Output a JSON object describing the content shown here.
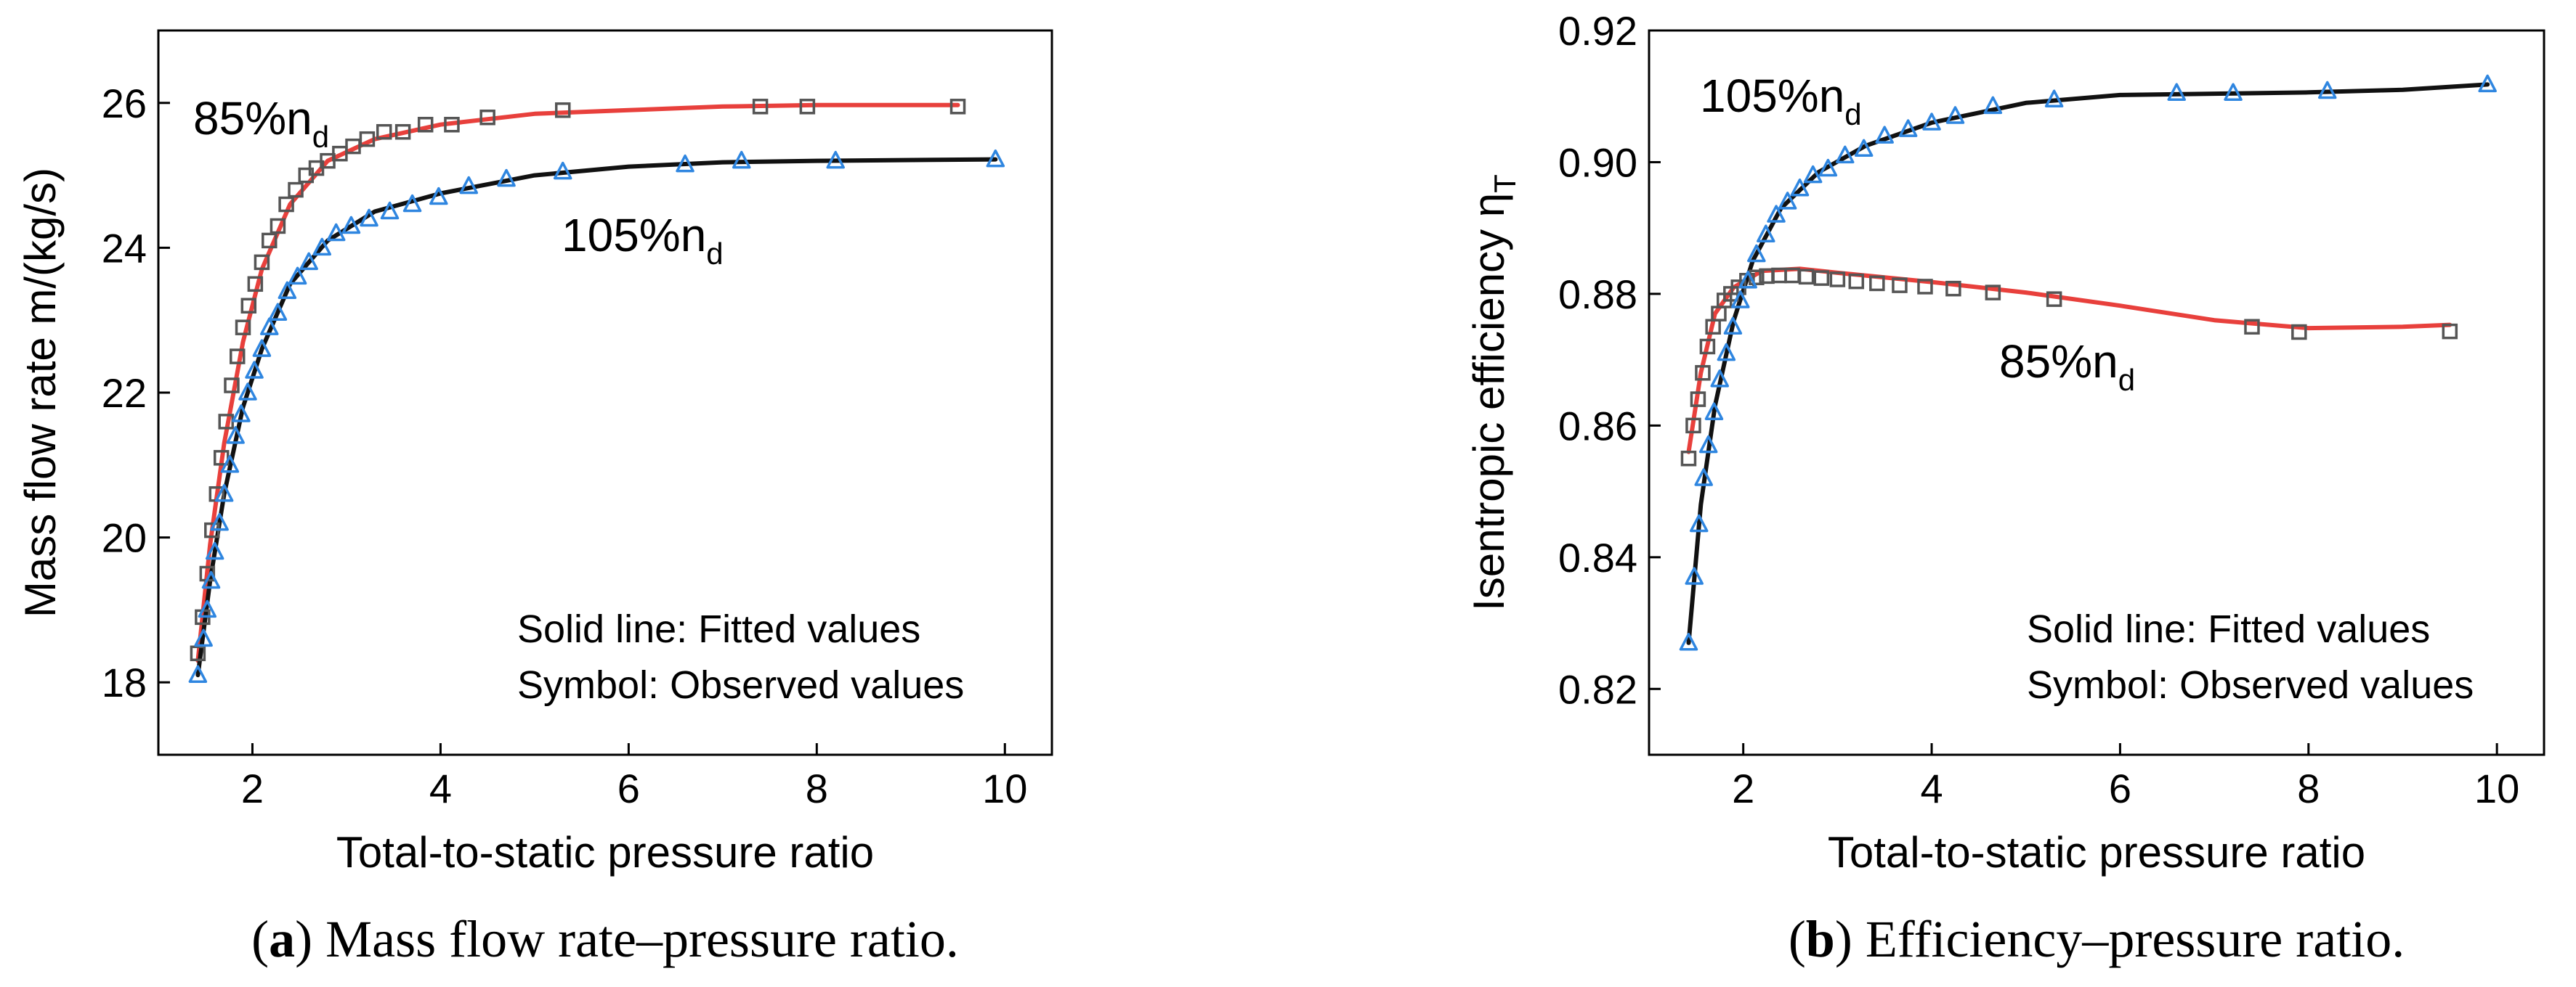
{
  "chart_data": [
    {
      "type": "line",
      "panel": "a",
      "caption_letter": "a",
      "caption_text": "Mass flow rate–pressure ratio.",
      "xlabel": "Total-to-static pressure ratio",
      "ylabel": "Mass flow rate m/(kg/s)",
      "xlim": [
        1.0,
        10.5
      ],
      "ylim": [
        17.0,
        27.0
      ],
      "xticks": [
        2,
        4,
        6,
        8,
        10
      ],
      "yticks": [
        18,
        20,
        22,
        24,
        26
      ],
      "note_fitted": "Solid line: Fitted values",
      "note_symbol": "Symbol: Observed values",
      "series": [
        {
          "name": "85%nd",
          "label_main": "85%n",
          "label_sub": "d",
          "line_color": "#e8403c",
          "marker": "square",
          "marker_color": "#555555",
          "observed": [
            [
              1.42,
              18.4
            ],
            [
              1.47,
              18.9
            ],
            [
              1.52,
              19.5
            ],
            [
              1.57,
              20.1
            ],
            [
              1.62,
              20.6
            ],
            [
              1.67,
              21.1
            ],
            [
              1.72,
              21.6
            ],
            [
              1.78,
              22.1
            ],
            [
              1.84,
              22.5
            ],
            [
              1.9,
              22.9
            ],
            [
              1.96,
              23.2
            ],
            [
              2.03,
              23.5
            ],
            [
              2.1,
              23.8
            ],
            [
              2.18,
              24.1
            ],
            [
              2.27,
              24.3
            ],
            [
              2.36,
              24.6
            ],
            [
              2.46,
              24.8
            ],
            [
              2.57,
              25.0
            ],
            [
              2.68,
              25.1
            ],
            [
              2.8,
              25.2
            ],
            [
              2.93,
              25.3
            ],
            [
              3.07,
              25.4
            ],
            [
              3.22,
              25.5
            ],
            [
              3.4,
              25.6
            ],
            [
              3.6,
              25.6
            ],
            [
              3.84,
              25.7
            ],
            [
              4.12,
              25.7
            ],
            [
              4.5,
              25.8
            ],
            [
              5.3,
              25.9
            ],
            [
              7.4,
              25.95
            ],
            [
              7.9,
              25.95
            ],
            [
              9.5,
              25.95
            ]
          ],
          "fitted": [
            [
              1.42,
              18.3
            ],
            [
              1.55,
              19.9
            ],
            [
              1.7,
              21.3
            ],
            [
              1.9,
              22.7
            ],
            [
              2.1,
              23.7
            ],
            [
              2.4,
              24.6
            ],
            [
              2.8,
              25.2
            ],
            [
              3.3,
              25.5
            ],
            [
              4.0,
              25.7
            ],
            [
              5.0,
              25.85
            ],
            [
              6.0,
              25.9
            ],
            [
              7.0,
              25.95
            ],
            [
              8.0,
              25.97
            ],
            [
              9.5,
              25.97
            ]
          ]
        },
        {
          "name": "105%nd",
          "label_main": "105%n",
          "label_sub": "d",
          "line_color": "#111111",
          "marker": "triangle",
          "marker_color": "#2f86e0",
          "observed": [
            [
              1.42,
              18.1
            ],
            [
              1.48,
              18.6
            ],
            [
              1.52,
              19.0
            ],
            [
              1.56,
              19.4
            ],
            [
              1.6,
              19.8
            ],
            [
              1.65,
              20.2
            ],
            [
              1.7,
              20.6
            ],
            [
              1.76,
              21.0
            ],
            [
              1.82,
              21.4
            ],
            [
              1.88,
              21.7
            ],
            [
              1.95,
              22.0
            ],
            [
              2.02,
              22.3
            ],
            [
              2.1,
              22.6
            ],
            [
              2.18,
              22.9
            ],
            [
              2.27,
              23.1
            ],
            [
              2.37,
              23.4
            ],
            [
              2.48,
              23.6
            ],
            [
              2.6,
              23.8
            ],
            [
              2.74,
              24.0
            ],
            [
              2.89,
              24.2
            ],
            [
              3.05,
              24.3
            ],
            [
              3.24,
              24.4
            ],
            [
              3.46,
              24.5
            ],
            [
              3.7,
              24.6
            ],
            [
              3.98,
              24.7
            ],
            [
              4.3,
              24.85
            ],
            [
              4.7,
              24.95
            ],
            [
              5.3,
              25.05
            ],
            [
              6.6,
              25.15
            ],
            [
              7.2,
              25.2
            ],
            [
              8.2,
              25.2
            ],
            [
              9.9,
              25.22
            ]
          ],
          "fitted": [
            [
              1.42,
              18.1
            ],
            [
              1.55,
              19.4
            ],
            [
              1.7,
              20.6
            ],
            [
              1.9,
              21.8
            ],
            [
              2.1,
              22.6
            ],
            [
              2.4,
              23.5
            ],
            [
              2.8,
              24.1
            ],
            [
              3.3,
              24.5
            ],
            [
              4.0,
              24.75
            ],
            [
              5.0,
              25.0
            ],
            [
              6.0,
              25.12
            ],
            [
              7.0,
              25.18
            ],
            [
              8.0,
              25.2
            ],
            [
              9.9,
              25.22
            ]
          ]
        }
      ]
    },
    {
      "type": "line",
      "panel": "b",
      "caption_letter": "b",
      "caption_text": "Efficiency–pressure ratio.",
      "xlabel": "Total-to-static pressure ratio",
      "ylabel_main": "Isentropic efficiency η",
      "ylabel_sub": "T",
      "xlim": [
        1.0,
        10.5
      ],
      "ylim": [
        0.81,
        0.92
      ],
      "xticks": [
        2,
        4,
        6,
        8,
        10
      ],
      "yticks": [
        0.82,
        0.84,
        0.86,
        0.88,
        0.9,
        0.92
      ],
      "ytick_labels": [
        "0.82",
        "0.84",
        "0.86",
        "0.88",
        "0.90",
        "0.92"
      ],
      "note_fitted": "Solid line: Fitted values",
      "note_symbol": "Symbol: Observed values",
      "series": [
        {
          "name": "85%nd",
          "label_main": "85%n",
          "label_sub": "d",
          "line_color": "#e8403c",
          "marker": "square",
          "marker_color": "#555555",
          "observed": [
            [
              1.42,
              0.855
            ],
            [
              1.47,
              0.86
            ],
            [
              1.52,
              0.864
            ],
            [
              1.57,
              0.868
            ],
            [
              1.62,
              0.872
            ],
            [
              1.68,
              0.875
            ],
            [
              1.74,
              0.877
            ],
            [
              1.8,
              0.879
            ],
            [
              1.87,
              0.88
            ],
            [
              1.95,
              0.881
            ],
            [
              2.04,
              0.882
            ],
            [
              2.14,
              0.8825
            ],
            [
              2.25,
              0.8827
            ],
            [
              2.38,
              0.8828
            ],
            [
              2.52,
              0.8828
            ],
            [
              2.67,
              0.8826
            ],
            [
              2.83,
              0.8824
            ],
            [
              3.0,
              0.8822
            ],
            [
              3.2,
              0.8819
            ],
            [
              3.42,
              0.8816
            ],
            [
              3.66,
              0.8813
            ],
            [
              3.93,
              0.8811
            ],
            [
              4.23,
              0.8808
            ],
            [
              4.65,
              0.8802
            ],
            [
              5.3,
              0.8792
            ],
            [
              7.4,
              0.875
            ],
            [
              7.9,
              0.8742
            ],
            [
              9.5,
              0.8743
            ]
          ],
          "fitted": [
            [
              1.42,
              0.856
            ],
            [
              1.55,
              0.868
            ],
            [
              1.7,
              0.877
            ],
            [
              1.9,
              0.881
            ],
            [
              2.2,
              0.8835
            ],
            [
              2.6,
              0.8838
            ],
            [
              3.0,
              0.8832
            ],
            [
              4.0,
              0.8818
            ],
            [
              5.0,
              0.8802
            ],
            [
              6.0,
              0.8782
            ],
            [
              7.0,
              0.876
            ],
            [
              8.0,
              0.8748
            ],
            [
              9.0,
              0.875
            ],
            [
              9.5,
              0.8753
            ]
          ]
        },
        {
          "name": "105%nd",
          "label_main": "105%n",
          "label_sub": "d",
          "line_color": "#111111",
          "marker": "triangle",
          "marker_color": "#2f86e0",
          "observed": [
            [
              1.42,
              0.827
            ],
            [
              1.48,
              0.837
            ],
            [
              1.53,
              0.845
            ],
            [
              1.58,
              0.852
            ],
            [
              1.63,
              0.857
            ],
            [
              1.69,
              0.862
            ],
            [
              1.75,
              0.867
            ],
            [
              1.82,
              0.871
            ],
            [
              1.89,
              0.875
            ],
            [
              1.97,
              0.879
            ],
            [
              2.05,
              0.882
            ],
            [
              2.14,
              0.886
            ],
            [
              2.24,
              0.889
            ],
            [
              2.35,
              0.892
            ],
            [
              2.47,
              0.894
            ],
            [
              2.6,
              0.896
            ],
            [
              2.74,
              0.898
            ],
            [
              2.9,
              0.899
            ],
            [
              3.08,
              0.901
            ],
            [
              3.28,
              0.902
            ],
            [
              3.5,
              0.904
            ],
            [
              3.75,
              0.905
            ],
            [
              4.0,
              0.906
            ],
            [
              4.25,
              0.907
            ],
            [
              4.65,
              0.9085
            ],
            [
              5.3,
              0.9095
            ],
            [
              6.6,
              0.9105
            ],
            [
              7.2,
              0.9105
            ],
            [
              8.2,
              0.9108
            ],
            [
              9.9,
              0.9118
            ]
          ],
          "fitted": [
            [
              1.42,
              0.827
            ],
            [
              1.55,
              0.848
            ],
            [
              1.7,
              0.863
            ],
            [
              1.9,
              0.876
            ],
            [
              2.1,
              0.885
            ],
            [
              2.4,
              0.893
            ],
            [
              2.8,
              0.8985
            ],
            [
              3.3,
              0.9025
            ],
            [
              4.0,
              0.906
            ],
            [
              5.0,
              0.909
            ],
            [
              6.0,
              0.9102
            ],
            [
              7.0,
              0.9104
            ],
            [
              8.0,
              0.9106
            ],
            [
              9.0,
              0.911
            ],
            [
              9.9,
              0.9118
            ]
          ]
        }
      ]
    }
  ]
}
